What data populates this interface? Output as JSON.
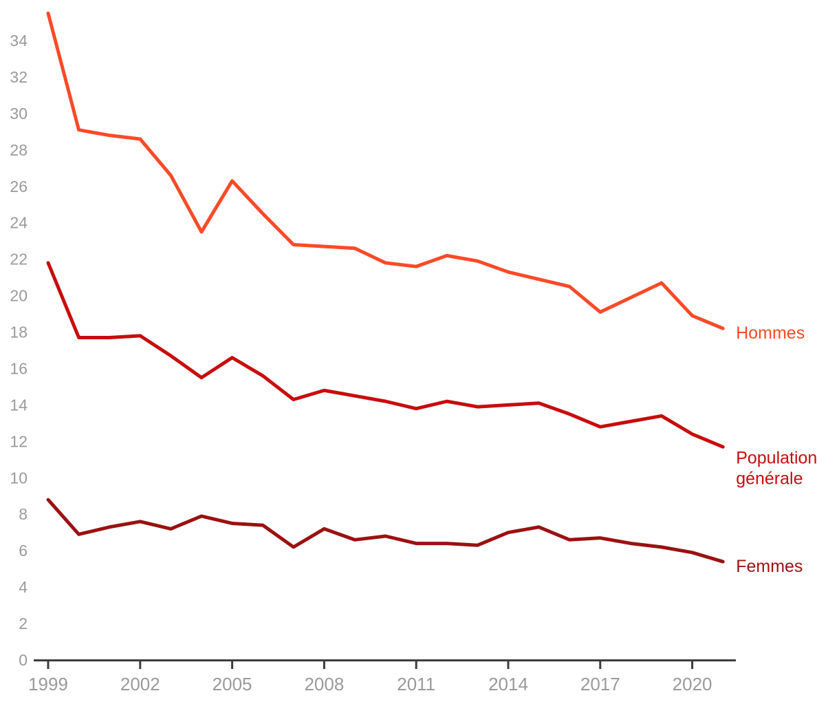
{
  "chart_data": {
    "type": "line",
    "title": "",
    "xlabel": "",
    "ylabel": "",
    "grid": false,
    "legend_position": "right-of-line-ends",
    "xlim": [
      1999,
      2021
    ],
    "ylim": [
      0,
      35.5
    ],
    "x": [
      1999,
      2000,
      2001,
      2002,
      2003,
      2004,
      2005,
      2006,
      2007,
      2008,
      2009,
      2010,
      2011,
      2012,
      2013,
      2014,
      2015,
      2016,
      2017,
      2018,
      2019,
      2020,
      2021
    ],
    "xticks": [
      1999,
      2002,
      2005,
      2008,
      2011,
      2014,
      2017,
      2020
    ],
    "yticks": [
      0,
      2,
      4,
      6,
      8,
      10,
      12,
      14,
      16,
      18,
      20,
      22,
      24,
      26,
      28,
      30,
      32,
      34
    ],
    "series": [
      {
        "name": "Hommes",
        "label_lines": [
          "Hommes"
        ],
        "color": "#fa4a28",
        "values": [
          35.5,
          29.1,
          28.8,
          28.6,
          26.6,
          23.5,
          26.3,
          24.5,
          22.8,
          22.7,
          22.6,
          21.8,
          21.6,
          22.2,
          21.9,
          21.3,
          20.9,
          20.5,
          19.1,
          19.9,
          20.7,
          18.9,
          18.2
        ]
      },
      {
        "name": "Population générale",
        "label_lines": [
          "Population",
          "générale"
        ],
        "color": "#c80c0c",
        "values": [
          21.8,
          17.7,
          17.7,
          17.8,
          16.7,
          15.5,
          16.6,
          15.6,
          14.3,
          14.8,
          14.5,
          14.2,
          13.8,
          14.2,
          13.9,
          14.0,
          14.1,
          13.5,
          12.8,
          13.1,
          13.4,
          12.4,
          11.7
        ]
      },
      {
        "name": "Femmes",
        "label_lines": [
          "Femmes"
        ],
        "color": "#9b1111",
        "values": [
          8.8,
          6.9,
          7.3,
          7.6,
          7.2,
          7.9,
          7.5,
          7.4,
          6.2,
          7.2,
          6.6,
          6.8,
          6.4,
          6.4,
          6.3,
          7.0,
          7.3,
          6.6,
          6.7,
          6.4,
          6.2,
          5.9,
          5.4
        ]
      }
    ]
  },
  "colors": {
    "axis": "#3d3d3d",
    "tick_label": "#9a9a9a",
    "background": "#ffffff"
  }
}
